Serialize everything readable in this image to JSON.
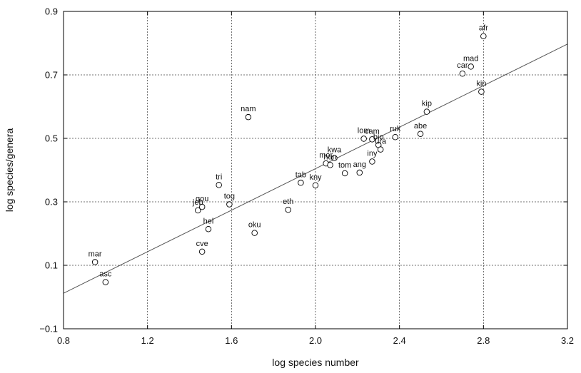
{
  "chart_data": {
    "type": "scatter",
    "title": "",
    "xlabel": "log species number",
    "ylabel": "log species/genera",
    "xlim": [
      0.8,
      3.2
    ],
    "ylim": [
      -0.1,
      0.9
    ],
    "x_ticks": [
      0.8,
      1.2,
      1.6,
      2.0,
      2.4,
      2.8,
      3.2
    ],
    "x_tick_labels": [
      "0.8",
      "1.2",
      "1.6",
      "2.0",
      "2.4",
      "2.8",
      "3.2"
    ],
    "y_ticks": [
      -0.1,
      0.1,
      0.3,
      0.5,
      0.7,
      0.9
    ],
    "y_tick_labels": [
      "−0.1",
      "0.1",
      "0.3",
      "0.5",
      "0.7",
      "0.9"
    ],
    "grid": true,
    "regression_line": {
      "x": [
        0.8,
        3.2
      ],
      "y": [
        0.012,
        0.797
      ]
    },
    "points": [
      {
        "label": "afr",
        "x": 2.8,
        "y": 0.822
      },
      {
        "label": "mad",
        "x": 2.74,
        "y": 0.726
      },
      {
        "label": "car",
        "x": 2.7,
        "y": 0.704
      },
      {
        "label": "kin",
        "x": 2.79,
        "y": 0.647
      },
      {
        "label": "kip",
        "x": 2.53,
        "y": 0.584
      },
      {
        "label": "nam",
        "x": 1.68,
        "y": 0.567
      },
      {
        "label": "abe",
        "x": 2.5,
        "y": 0.514
      },
      {
        "label": "ruk",
        "x": 2.38,
        "y": 0.504
      },
      {
        "label": "lom",
        "x": 2.23,
        "y": 0.499
      },
      {
        "label": "cam",
        "x": 2.27,
        "y": 0.497
      },
      {
        "label": "bio",
        "x": 2.3,
        "y": 0.479
      },
      {
        "label": "ura",
        "x": 2.31,
        "y": 0.465
      },
      {
        "label": "iny",
        "x": 2.27,
        "y": 0.427
      },
      {
        "label": "kwa",
        "x": 2.09,
        "y": 0.438
      },
      {
        "label": "mor",
        "x": 2.05,
        "y": 0.421
      },
      {
        "label": "hun",
        "x": 2.07,
        "y": 0.416
      },
      {
        "label": "tom",
        "x": 2.14,
        "y": 0.39
      },
      {
        "label": "ang",
        "x": 2.21,
        "y": 0.392
      },
      {
        "label": "tab",
        "x": 1.93,
        "y": 0.36
      },
      {
        "label": "kny",
        "x": 2.0,
        "y": 0.352
      },
      {
        "label": "tri",
        "x": 1.54,
        "y": 0.353
      },
      {
        "label": "tog",
        "x": 1.59,
        "y": 0.292
      },
      {
        "label": "gou",
        "x": 1.46,
        "y": 0.284
      },
      {
        "label": "jeb",
        "x": 1.44,
        "y": 0.273
      },
      {
        "label": "eth",
        "x": 1.87,
        "y": 0.275
      },
      {
        "label": "hel",
        "x": 1.49,
        "y": 0.214
      },
      {
        "label": "oku",
        "x": 1.71,
        "y": 0.202
      },
      {
        "label": "cve",
        "x": 1.46,
        "y": 0.143
      },
      {
        "label": "mar",
        "x": 0.95,
        "y": 0.11
      },
      {
        "label": "asc",
        "x": 1.0,
        "y": 0.047
      }
    ]
  }
}
